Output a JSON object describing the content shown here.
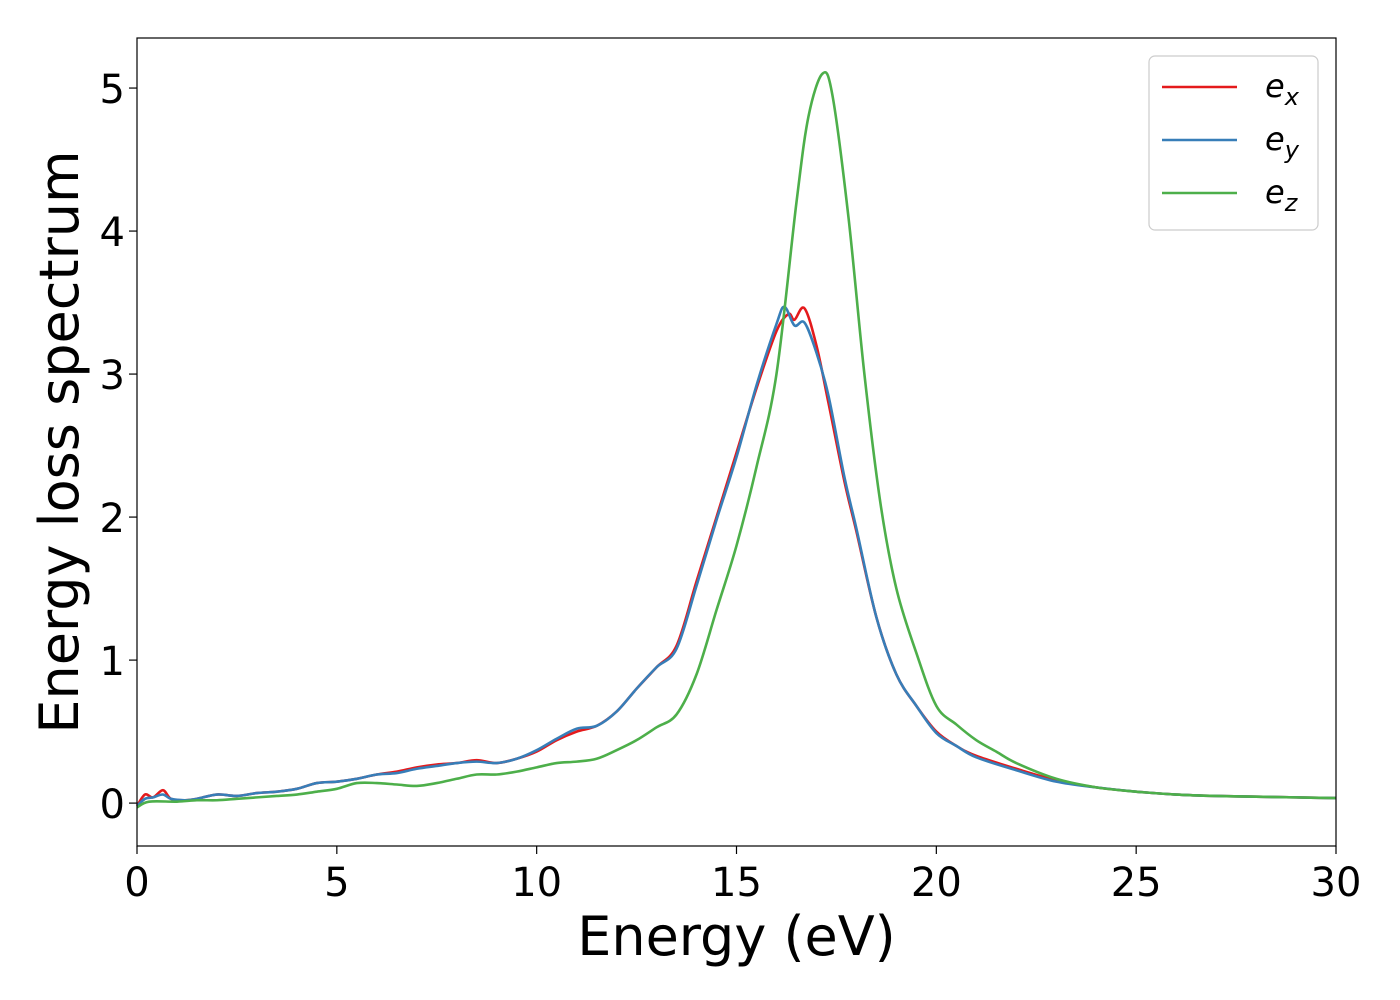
{
  "chart_data": {
    "type": "line",
    "xlabel": "Energy (eV)",
    "ylabel": "Energy loss spectrum",
    "xlim": [
      0,
      30
    ],
    "ylim": [
      -0.3,
      5.35
    ],
    "xticks": [
      "0",
      "5",
      "10",
      "15",
      "20",
      "25",
      "30"
    ],
    "yticks": [
      "0",
      "1",
      "2",
      "3",
      "4",
      "5"
    ],
    "grid": false,
    "legend_position": "top-right",
    "series": [
      {
        "name": "e",
        "subscript": "x",
        "color": "#e41a1c",
        "points": [
          [
            0,
            -0.02
          ],
          [
            0.2,
            0.06
          ],
          [
            0.4,
            0.04
          ],
          [
            0.65,
            0.09
          ],
          [
            0.85,
            0.03
          ],
          [
            1.2,
            0.02
          ],
          [
            1.5,
            0.03
          ],
          [
            2,
            0.06
          ],
          [
            2.5,
            0.05
          ],
          [
            3,
            0.07
          ],
          [
            3.5,
            0.08
          ],
          [
            4,
            0.1
          ],
          [
            4.5,
            0.14
          ],
          [
            5,
            0.15
          ],
          [
            5.5,
            0.17
          ],
          [
            6,
            0.2
          ],
          [
            6.5,
            0.22
          ],
          [
            7,
            0.25
          ],
          [
            7.5,
            0.27
          ],
          [
            8,
            0.28
          ],
          [
            8.5,
            0.3
          ],
          [
            9,
            0.28
          ],
          [
            9.5,
            0.31
          ],
          [
            10,
            0.36
          ],
          [
            10.5,
            0.44
          ],
          [
            11,
            0.5
          ],
          [
            11.5,
            0.54
          ],
          [
            12,
            0.64
          ],
          [
            12.5,
            0.8
          ],
          [
            13,
            0.95
          ],
          [
            13.5,
            1.1
          ],
          [
            14,
            1.55
          ],
          [
            14.5,
            2.0
          ],
          [
            15,
            2.45
          ],
          [
            15.5,
            2.9
          ],
          [
            16,
            3.3
          ],
          [
            16.3,
            3.42
          ],
          [
            16.45,
            3.38
          ],
          [
            16.7,
            3.46
          ],
          [
            17,
            3.2
          ],
          [
            17.3,
            2.8
          ],
          [
            17.7,
            2.25
          ],
          [
            18,
            1.9
          ],
          [
            18.5,
            1.3
          ],
          [
            19,
            0.9
          ],
          [
            19.5,
            0.68
          ],
          [
            20,
            0.5
          ],
          [
            20.5,
            0.4
          ],
          [
            21,
            0.33
          ],
          [
            22,
            0.24
          ],
          [
            23,
            0.16
          ],
          [
            24,
            0.11
          ],
          [
            25,
            0.08
          ],
          [
            26,
            0.06
          ],
          [
            27,
            0.05
          ],
          [
            28,
            0.045
          ],
          [
            29,
            0.04
          ],
          [
            30,
            0.035
          ]
        ]
      },
      {
        "name": "e",
        "subscript": "y",
        "color": "#377eb8",
        "points": [
          [
            0,
            -0.02
          ],
          [
            0.2,
            0.03
          ],
          [
            0.4,
            0.04
          ],
          [
            0.65,
            0.06
          ],
          [
            0.85,
            0.03
          ],
          [
            1.2,
            0.02
          ],
          [
            1.5,
            0.03
          ],
          [
            2,
            0.06
          ],
          [
            2.5,
            0.05
          ],
          [
            3,
            0.07
          ],
          [
            3.5,
            0.08
          ],
          [
            4,
            0.1
          ],
          [
            4.5,
            0.14
          ],
          [
            5,
            0.15
          ],
          [
            5.5,
            0.17
          ],
          [
            6,
            0.2
          ],
          [
            6.5,
            0.21
          ],
          [
            7,
            0.24
          ],
          [
            7.5,
            0.26
          ],
          [
            8,
            0.28
          ],
          [
            8.5,
            0.29
          ],
          [
            9,
            0.28
          ],
          [
            9.5,
            0.31
          ],
          [
            10,
            0.37
          ],
          [
            10.5,
            0.45
          ],
          [
            11,
            0.52
          ],
          [
            11.5,
            0.54
          ],
          [
            12,
            0.64
          ],
          [
            12.5,
            0.8
          ],
          [
            13,
            0.95
          ],
          [
            13.5,
            1.08
          ],
          [
            14,
            1.52
          ],
          [
            14.5,
            1.98
          ],
          [
            15,
            2.42
          ],
          [
            15.5,
            2.92
          ],
          [
            16,
            3.35
          ],
          [
            16.2,
            3.47
          ],
          [
            16.45,
            3.34
          ],
          [
            16.7,
            3.36
          ],
          [
            17,
            3.15
          ],
          [
            17.3,
            2.85
          ],
          [
            17.7,
            2.28
          ],
          [
            18,
            1.92
          ],
          [
            18.5,
            1.3
          ],
          [
            19,
            0.9
          ],
          [
            19.5,
            0.68
          ],
          [
            20,
            0.49
          ],
          [
            20.5,
            0.4
          ],
          [
            21,
            0.32
          ],
          [
            22,
            0.23
          ],
          [
            23,
            0.15
          ],
          [
            24,
            0.11
          ],
          [
            25,
            0.08
          ],
          [
            26,
            0.06
          ],
          [
            27,
            0.05
          ],
          [
            28,
            0.045
          ],
          [
            29,
            0.04
          ],
          [
            30,
            0.035
          ]
        ]
      },
      {
        "name": "e",
        "subscript": "z",
        "color": "#4daf4a",
        "points": [
          [
            0,
            -0.03
          ],
          [
            0.3,
            0.01
          ],
          [
            1,
            0.01
          ],
          [
            1.5,
            0.02
          ],
          [
            2,
            0.02
          ],
          [
            2.5,
            0.03
          ],
          [
            3,
            0.04
          ],
          [
            3.5,
            0.05
          ],
          [
            4,
            0.06
          ],
          [
            4.5,
            0.08
          ],
          [
            5,
            0.1
          ],
          [
            5.5,
            0.14
          ],
          [
            6,
            0.14
          ],
          [
            6.5,
            0.13
          ],
          [
            7,
            0.12
          ],
          [
            7.5,
            0.14
          ],
          [
            8,
            0.17
          ],
          [
            8.5,
            0.2
          ],
          [
            9,
            0.2
          ],
          [
            9.5,
            0.22
          ],
          [
            10,
            0.25
          ],
          [
            10.5,
            0.28
          ],
          [
            11,
            0.29
          ],
          [
            11.5,
            0.31
          ],
          [
            12,
            0.37
          ],
          [
            12.5,
            0.44
          ],
          [
            13,
            0.53
          ],
          [
            13.5,
            0.62
          ],
          [
            14,
            0.9
          ],
          [
            14.5,
            1.35
          ],
          [
            15,
            1.8
          ],
          [
            15.5,
            2.35
          ],
          [
            16,
            3.0
          ],
          [
            16.5,
            4.2
          ],
          [
            16.8,
            4.8
          ],
          [
            17.15,
            5.1
          ],
          [
            17.4,
            4.95
          ],
          [
            17.8,
            4.1
          ],
          [
            18.2,
            3.0
          ],
          [
            18.6,
            2.1
          ],
          [
            19,
            1.5
          ],
          [
            19.5,
            1.05
          ],
          [
            20,
            0.68
          ],
          [
            20.5,
            0.55
          ],
          [
            21,
            0.44
          ],
          [
            21.5,
            0.36
          ],
          [
            22,
            0.28
          ],
          [
            23,
            0.17
          ],
          [
            24,
            0.11
          ],
          [
            25,
            0.08
          ],
          [
            26,
            0.06
          ],
          [
            27,
            0.05
          ],
          [
            28,
            0.045
          ],
          [
            29,
            0.04
          ],
          [
            30,
            0.035
          ]
        ]
      }
    ]
  }
}
